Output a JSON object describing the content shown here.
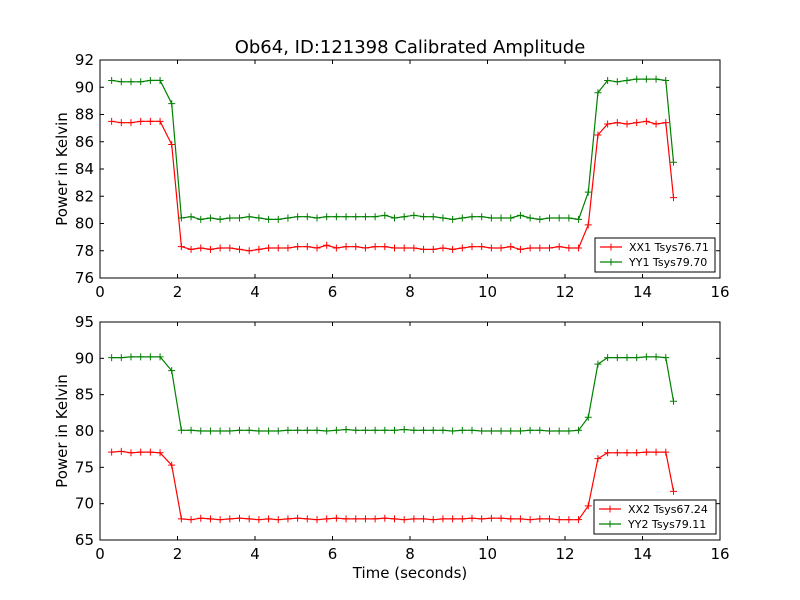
{
  "title": "Ob64, ID:121398 Calibrated Amplitude",
  "xlabel": "Time (seconds)",
  "chart_data": [
    {
      "type": "line",
      "title": "Ob64, ID:121398 Calibrated Amplitude",
      "xlabel": "",
      "ylabel": "Power in Kelvin",
      "xlim": [
        0,
        16
      ],
      "ylim": [
        76,
        92
      ],
      "xticks": [
        "0",
        "2",
        "4",
        "6",
        "8",
        "10",
        "12",
        "14",
        "16"
      ],
      "yticks": [
        "76",
        "78",
        "80",
        "82",
        "84",
        "86",
        "88",
        "90",
        "92"
      ],
      "grid": false,
      "legend_position": "lower-right",
      "x": [
        0.3,
        0.55,
        0.8,
        1.05,
        1.3,
        1.55,
        1.85,
        2.1,
        2.35,
        2.6,
        2.85,
        3.1,
        3.35,
        3.6,
        3.85,
        4.1,
        4.35,
        4.6,
        4.85,
        5.1,
        5.35,
        5.6,
        5.85,
        6.1,
        6.35,
        6.6,
        6.85,
        7.1,
        7.35,
        7.6,
        7.85,
        8.1,
        8.35,
        8.6,
        8.85,
        9.1,
        9.35,
        9.6,
        9.85,
        10.1,
        10.35,
        10.6,
        10.85,
        11.1,
        11.35,
        11.6,
        11.85,
        12.1,
        12.35,
        12.6,
        12.85,
        13.1,
        13.35,
        13.6,
        13.85,
        14.1,
        14.35,
        14.6,
        14.8
      ],
      "series": [
        {
          "name": "XX1 Tsys76.71",
          "color": "#ff0000",
          "values": [
            87.5,
            87.4,
            87.4,
            87.5,
            87.5,
            87.5,
            85.8,
            78.3,
            78.1,
            78.2,
            78.1,
            78.2,
            78.2,
            78.1,
            78.0,
            78.1,
            78.2,
            78.2,
            78.2,
            78.3,
            78.3,
            78.2,
            78.4,
            78.2,
            78.3,
            78.3,
            78.2,
            78.3,
            78.3,
            78.2,
            78.2,
            78.2,
            78.1,
            78.1,
            78.2,
            78.1,
            78.2,
            78.3,
            78.3,
            78.2,
            78.2,
            78.3,
            78.1,
            78.2,
            78.2,
            78.2,
            78.3,
            78.2,
            78.2,
            79.9,
            86.5,
            87.3,
            87.4,
            87.3,
            87.4,
            87.5,
            87.3,
            87.4,
            81.9
          ]
        },
        {
          "name": "YY1 Tsys79.70",
          "color": "#008000",
          "values": [
            90.5,
            90.4,
            90.4,
            90.4,
            90.5,
            90.5,
            88.8,
            80.4,
            80.5,
            80.3,
            80.4,
            80.3,
            80.4,
            80.4,
            80.5,
            80.4,
            80.3,
            80.3,
            80.4,
            80.5,
            80.5,
            80.4,
            80.5,
            80.5,
            80.5,
            80.5,
            80.5,
            80.5,
            80.6,
            80.4,
            80.5,
            80.6,
            80.5,
            80.5,
            80.4,
            80.3,
            80.4,
            80.5,
            80.5,
            80.4,
            80.4,
            80.4,
            80.6,
            80.4,
            80.3,
            80.4,
            80.4,
            80.4,
            80.3,
            82.3,
            89.6,
            90.5,
            90.4,
            90.5,
            90.6,
            90.6,
            90.6,
            90.5,
            84.5
          ]
        }
      ]
    },
    {
      "type": "line",
      "title": "",
      "xlabel": "Time (seconds)",
      "ylabel": "Power in Kelvin",
      "xlim": [
        0,
        16
      ],
      "ylim": [
        65,
        95
      ],
      "xticks": [
        "0",
        "2",
        "4",
        "6",
        "8",
        "10",
        "12",
        "14",
        "16"
      ],
      "yticks": [
        "65",
        "70",
        "75",
        "80",
        "85",
        "90",
        "95"
      ],
      "grid": false,
      "legend_position": "lower-right",
      "x": [
        0.3,
        0.55,
        0.8,
        1.05,
        1.3,
        1.55,
        1.85,
        2.1,
        2.35,
        2.6,
        2.85,
        3.1,
        3.35,
        3.6,
        3.85,
        4.1,
        4.35,
        4.6,
        4.85,
        5.1,
        5.35,
        5.6,
        5.85,
        6.1,
        6.35,
        6.6,
        6.85,
        7.1,
        7.35,
        7.6,
        7.85,
        8.1,
        8.35,
        8.6,
        8.85,
        9.1,
        9.35,
        9.6,
        9.85,
        10.1,
        10.35,
        10.6,
        10.85,
        11.1,
        11.35,
        11.6,
        11.85,
        12.1,
        12.35,
        12.6,
        12.85,
        13.1,
        13.35,
        13.6,
        13.85,
        14.1,
        14.35,
        14.6,
        14.8
      ],
      "series": [
        {
          "name": "XX2 Tsys67.24",
          "color": "#ff0000",
          "values": [
            77.1,
            77.2,
            77.0,
            77.1,
            77.1,
            77.0,
            75.3,
            67.9,
            67.8,
            68.0,
            67.9,
            67.8,
            67.9,
            68.0,
            67.9,
            67.8,
            67.9,
            67.8,
            67.9,
            68.0,
            67.9,
            67.8,
            67.9,
            68.0,
            67.9,
            67.9,
            67.9,
            67.9,
            68.0,
            67.9,
            67.8,
            67.9,
            67.9,
            67.8,
            67.9,
            67.9,
            67.9,
            68.0,
            67.9,
            68.0,
            68.0,
            67.9,
            67.9,
            67.8,
            67.9,
            67.9,
            67.8,
            67.8,
            67.8,
            69.7,
            76.2,
            77.0,
            77.0,
            77.0,
            77.0,
            77.1,
            77.1,
            77.1,
            71.7
          ]
        },
        {
          "name": "YY2 Tsys79.11",
          "color": "#008000",
          "values": [
            90.1,
            90.1,
            90.2,
            90.2,
            90.2,
            90.2,
            88.3,
            80.1,
            80.1,
            80.0,
            80.0,
            80.0,
            80.0,
            80.1,
            80.1,
            80.0,
            80.0,
            80.0,
            80.1,
            80.1,
            80.1,
            80.1,
            80.0,
            80.1,
            80.2,
            80.1,
            80.1,
            80.1,
            80.1,
            80.1,
            80.2,
            80.1,
            80.1,
            80.1,
            80.1,
            80.0,
            80.1,
            80.1,
            80.0,
            80.0,
            80.0,
            80.0,
            80.0,
            80.1,
            80.1,
            80.0,
            80.0,
            80.0,
            80.1,
            81.9,
            89.2,
            90.1,
            90.1,
            90.1,
            90.1,
            90.2,
            90.2,
            90.1,
            84.1
          ]
        }
      ]
    }
  ]
}
